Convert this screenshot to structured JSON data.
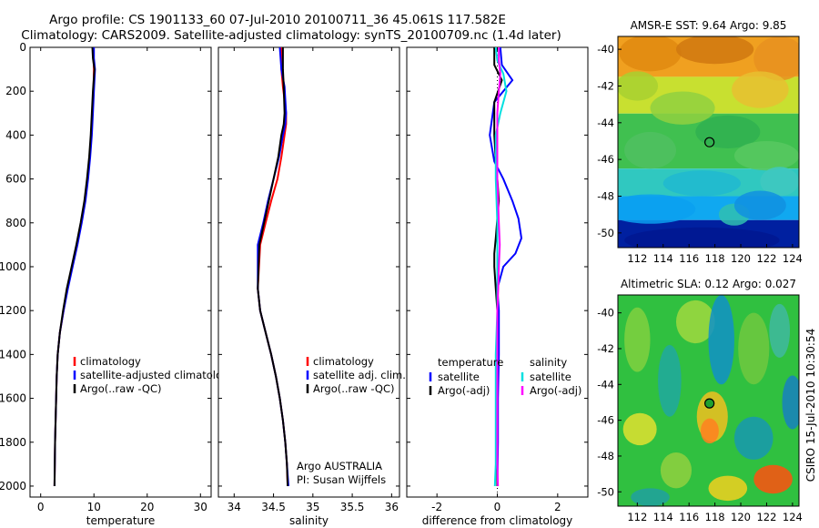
{
  "figure": {
    "title_line1": "Argo profile: CS 1901133_60 07-Jul-2010 20100711_36 45.061S 117.582E",
    "title_line2": "Climatology: CARS2009. Satellite-adjusted climatology: synTS_20100709.nc (1.4d later)",
    "side_label": "CSIRO 15-Jul-2010 10:30:54"
  },
  "chart_data": [
    {
      "type": "line",
      "id": "temperature",
      "xlabel": "temperature",
      "ylabel": "",
      "xlim": [
        -2,
        32
      ],
      "ylim": [
        0,
        2050
      ],
      "y_reversed": true,
      "xticks": [
        0,
        10,
        20,
        30
      ],
      "yticks": [
        0,
        200,
        400,
        600,
        800,
        1000,
        1200,
        1400,
        1600,
        1800,
        2000
      ],
      "legend": [
        "climatology",
        "satellite-adjusted climatology",
        "Argo(..raw -QC)"
      ],
      "series": [
        {
          "name": "climatology",
          "color": "#ff0000",
          "x": [
            9.9,
            9.9,
            10.0,
            9.9,
            9.7,
            9.5,
            9.2,
            8.8,
            8.3,
            7.6,
            6.8,
            5.9,
            5.0,
            4.3,
            3.6,
            3.2,
            3.0,
            2.9,
            2.8,
            2.7,
            2.6
          ],
          "y": [
            0,
            50,
            100,
            200,
            300,
            400,
            500,
            600,
            700,
            800,
            900,
            1000,
            1100,
            1200,
            1300,
            1400,
            1500,
            1600,
            1700,
            1800,
            2000
          ]
        },
        {
          "name": "satellite-adjusted climatology",
          "color": "#0000ff",
          "x": [
            10.0,
            10.0,
            10.2,
            10.0,
            9.8,
            9.6,
            9.3,
            8.9,
            8.4,
            7.7,
            6.9,
            6.0,
            5.1,
            4.3,
            3.6,
            3.2,
            3.0,
            2.9,
            2.8,
            2.7,
            2.6
          ],
          "y": [
            0,
            50,
            100,
            200,
            300,
            400,
            500,
            600,
            700,
            800,
            900,
            1000,
            1100,
            1200,
            1300,
            1400,
            1500,
            1600,
            1700,
            1800,
            2000
          ]
        },
        {
          "name": "Argo(..raw -QC)",
          "color": "#000000",
          "x": [
            9.7,
            9.8,
            10.1,
            9.8,
            9.6,
            9.4,
            9.1,
            8.7,
            8.2,
            7.5,
            6.7,
            5.8,
            4.9,
            4.2,
            3.6,
            3.2,
            3.0,
            2.9,
            2.8,
            2.7,
            2.6
          ],
          "y": [
            0,
            50,
            100,
            200,
            300,
            400,
            500,
            600,
            700,
            800,
            900,
            1000,
            1100,
            1200,
            1300,
            1400,
            1500,
            1600,
            1700,
            1800,
            2000
          ]
        }
      ]
    },
    {
      "type": "line",
      "id": "salinity",
      "xlabel": "salinity",
      "ylabel": "",
      "xlim": [
        33.8,
        36.1
      ],
      "ylim": [
        0,
        2050
      ],
      "y_reversed": true,
      "xticks": [
        34,
        34.5,
        35,
        35.5,
        36
      ],
      "yticks": [
        0,
        200,
        400,
        600,
        800,
        1000,
        1200,
        1400,
        1600,
        1800,
        2000
      ],
      "legend": [
        "climatology",
        "satellite adj. clim.",
        "Argo(..raw -QC)"
      ],
      "annotation_line1": "Argo AUSTRALIA",
      "annotation_line2": "PI: Susan Wijffels",
      "series": [
        {
          "name": "climatology",
          "color": "#ff0000",
          "x": [
            34.6,
            34.6,
            34.62,
            34.66,
            34.66,
            34.64,
            34.6,
            34.55,
            34.47,
            34.4,
            34.33,
            34.3,
            34.33,
            34.4,
            34.47,
            34.53,
            34.58,
            34.62,
            34.65,
            34.67,
            34.68
          ],
          "y": [
            0,
            100,
            180,
            300,
            350,
            400,
            500,
            600,
            700,
            800,
            900,
            1100,
            1200,
            1300,
            1400,
            1500,
            1600,
            1700,
            1800,
            1900,
            2000
          ]
        },
        {
          "name": "satellite adj. clim.",
          "color": "#0000ff",
          "x": [
            34.58,
            34.6,
            34.64,
            34.66,
            34.65,
            34.62,
            34.57,
            34.5,
            34.43,
            34.37,
            34.3,
            34.3,
            34.33,
            34.4,
            34.47,
            34.53,
            34.58,
            34.62,
            34.65,
            34.67,
            34.69
          ],
          "y": [
            0,
            100,
            180,
            300,
            350,
            400,
            500,
            600,
            700,
            800,
            900,
            1100,
            1200,
            1300,
            1400,
            1500,
            1600,
            1700,
            1800,
            1900,
            2000
          ]
        },
        {
          "name": "Argo(..raw -QC)",
          "color": "#000000",
          "x": [
            34.62,
            34.62,
            34.63,
            34.64,
            34.63,
            34.6,
            34.56,
            34.5,
            34.44,
            34.38,
            34.32,
            34.3,
            34.33,
            34.4,
            34.47,
            34.53,
            34.58,
            34.62,
            34.65,
            34.67,
            34.68
          ],
          "y": [
            0,
            100,
            180,
            300,
            350,
            400,
            500,
            600,
            700,
            800,
            900,
            1100,
            1200,
            1300,
            1400,
            1500,
            1600,
            1700,
            1800,
            1900,
            2000
          ]
        }
      ]
    },
    {
      "type": "line",
      "id": "difference",
      "xlabel": "difference from climatology",
      "ylabel": "",
      "xlim": [
        -3,
        3
      ],
      "ylim": [
        0,
        2050
      ],
      "y_reversed": true,
      "xticks": [
        -2,
        0,
        2
      ],
      "yticks": [
        0,
        200,
        400,
        600,
        800,
        1000,
        1200,
        1400,
        1600,
        1800,
        2000
      ],
      "legend_temp_header": "temperature",
      "legend_sal_header": "salinity",
      "legend": [
        "satellite",
        "Argo(-adj)",
        "satellite",
        "Argo(-adj)"
      ],
      "series": [
        {
          "name": "temperature satellite",
          "color": "#0000ff",
          "x": [
            0.1,
            0.15,
            0.5,
            -0.1,
            -0.25,
            -0.1,
            0.2,
            0.5,
            0.7,
            0.8,
            0.6,
            0.2,
            0.0,
            0.05,
            0.05,
            0.02,
            0.02,
            0.0
          ],
          "y": [
            0,
            80,
            150,
            250,
            400,
            520,
            600,
            700,
            780,
            870,
            940,
            1000,
            1100,
            1200,
            1400,
            1600,
            1800,
            2000
          ]
        },
        {
          "name": "temperature Argo(-adj)",
          "color": "#000000",
          "x": [
            -0.1,
            -0.1,
            0.15,
            -0.1,
            -0.1,
            -0.05,
            0.0,
            0.05,
            0.0,
            -0.05,
            -0.1,
            -0.1,
            -0.05,
            0.0,
            0.0,
            0.0,
            0.0,
            0.0
          ],
          "y": [
            0,
            80,
            150,
            250,
            400,
            520,
            600,
            700,
            780,
            870,
            940,
            1000,
            1100,
            1200,
            1400,
            1600,
            1800,
            2000
          ]
        },
        {
          "name": "salinity satellite",
          "color": "#00e0e0",
          "x": [
            -0.05,
            0.0,
            0.2,
            0.3,
            0.1,
            -0.05,
            -0.05,
            0.0,
            0.0,
            0.0,
            0.0,
            0.0,
            -0.05,
            -0.05,
            -0.05,
            -0.05,
            -0.08
          ],
          "y": [
            0,
            60,
            120,
            200,
            300,
            400,
            600,
            800,
            900,
            1000,
            1100,
            1200,
            1400,
            1600,
            1800,
            1900,
            2000
          ]
        },
        {
          "name": "salinity Argo(-adj)",
          "color": "#ff00ff",
          "x": [
            0.05,
            0.05,
            0.1,
            0.05,
            0.0,
            0.0,
            0.0,
            0.05,
            0.08,
            0.05,
            0.03,
            0.0,
            0.0,
            0.0,
            0.0,
            0.0,
            0.02
          ],
          "y": [
            0,
            60,
            120,
            200,
            300,
            400,
            600,
            800,
            900,
            1000,
            1100,
            1200,
            1400,
            1600,
            1800,
            1900,
            2000
          ]
        }
      ]
    },
    {
      "type": "heatmap",
      "id": "sst",
      "title": "AMSR-E SST: 9.64  Argo: 9.85",
      "xlim": [
        110.5,
        124.5
      ],
      "ylim": [
        -50.8,
        -39.3
      ],
      "xticks": [
        112,
        114,
        116,
        118,
        120,
        122,
        124
      ],
      "yticks": [
        -40,
        -42,
        -44,
        -46,
        -48,
        -50
      ],
      "marker": {
        "lon": 117.58,
        "lat": -45.06,
        "style": "open-circle"
      },
      "bands": [
        {
          "lat_from": -39.3,
          "lat_to": -41.5,
          "color": "#f0a020"
        },
        {
          "lat_from": -41.5,
          "lat_to": -43.5,
          "color": "#c8e030"
        },
        {
          "lat_from": -43.5,
          "lat_to": -46.5,
          "color": "#40c050"
        },
        {
          "lat_from": -46.5,
          "lat_to": -48.0,
          "color": "#30c8c0"
        },
        {
          "lat_from": -48.0,
          "lat_to": -49.3,
          "color": "#10a8f0"
        },
        {
          "lat_from": -49.3,
          "lat_to": -50.8,
          "color": "#0020a0"
        }
      ]
    },
    {
      "type": "heatmap",
      "id": "sla",
      "title": "Altimetric SLA: 0.12  Argo: 0.027",
      "xlim": [
        110.5,
        124.5
      ],
      "ylim": [
        -50.8,
        -39.0
      ],
      "xticks": [
        112,
        114,
        116,
        118,
        120,
        122,
        124
      ],
      "yticks": [
        -40,
        -42,
        -44,
        -46,
        -48,
        -50
      ],
      "marker": {
        "lon": 117.58,
        "lat": -45.06,
        "style": "filled-circle"
      },
      "background_color": "#30c040"
    }
  ]
}
